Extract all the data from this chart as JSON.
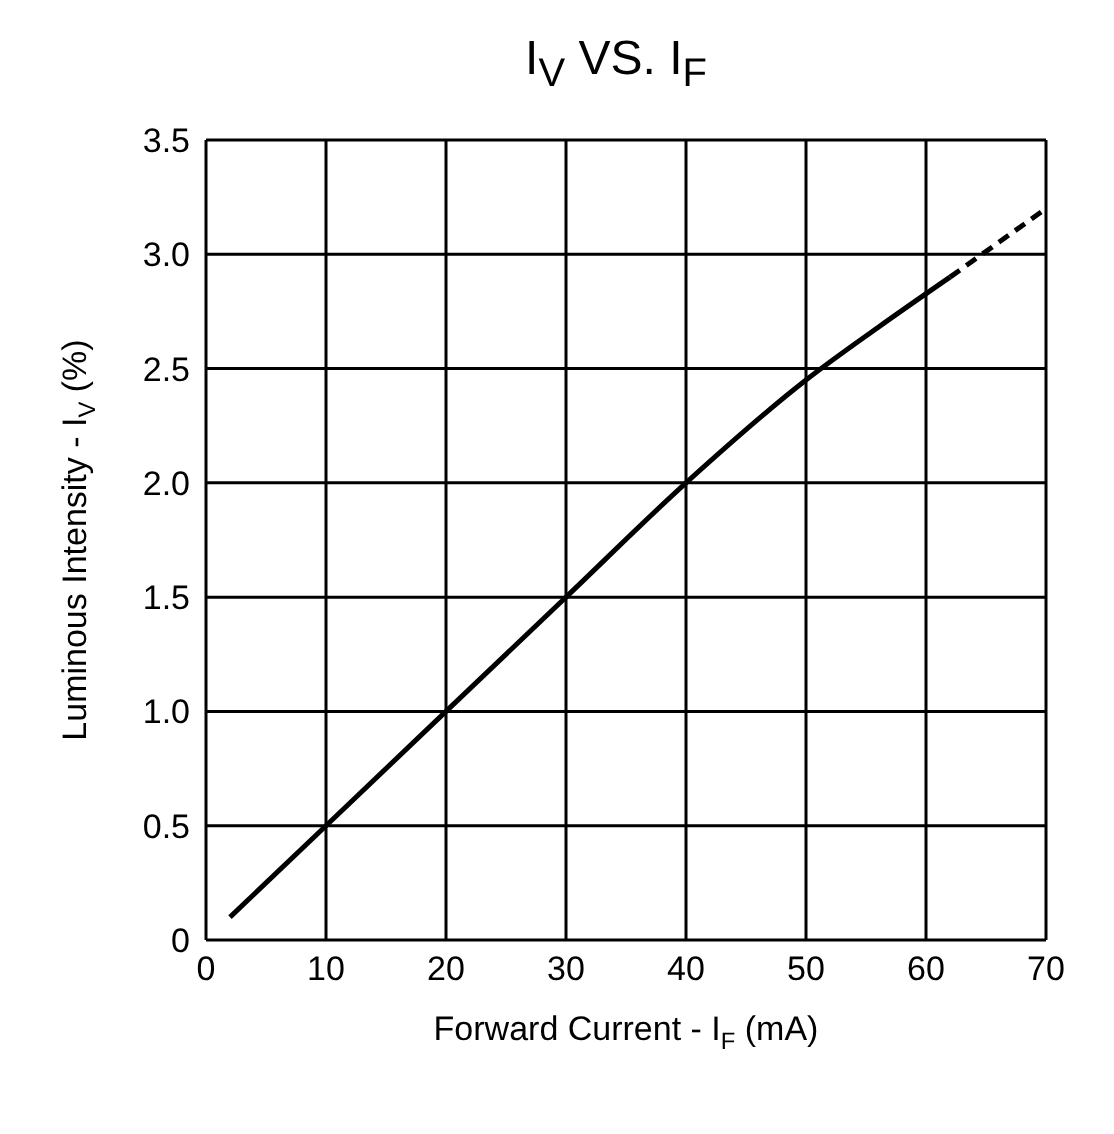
{
  "chart_data": {
    "type": "line",
    "title": "I$_{V}$ VS. I$_{F}$",
    "xlabel": "Forward Current - I$_{F}$ (mA)",
    "ylabel": "Luminous Intensity - I$_{V}$ (%)",
    "series": [
      {
        "color": "#000000",
        "line_style": "solid",
        "x": [
          2,
          10,
          20,
          30,
          40,
          50,
          56,
          62
        ],
        "values": [
          0.1,
          0.5,
          1.0,
          1.5,
          2.0,
          2.45,
          2.68,
          2.9
        ]
      },
      {
        "color": "#000000",
        "line_style": "dashed",
        "x": [
          62,
          66,
          70
        ],
        "values": [
          2.9,
          3.05,
          3.2
        ]
      }
    ],
    "xlim": [
      0,
      70
    ],
    "xticks": [
      0,
      10,
      20,
      30,
      40,
      50,
      60,
      70
    ],
    "ylim": [
      0,
      3.5
    ],
    "yticks": [
      0,
      0.5,
      {
        "value": 1,
        "label": "1.0"
      },
      1.5,
      {
        "value": 2,
        "label": "2.0"
      },
      2.5,
      {
        "value": 3,
        "label": "3.0"
      },
      3.5
    ],
    "grid": true
  }
}
